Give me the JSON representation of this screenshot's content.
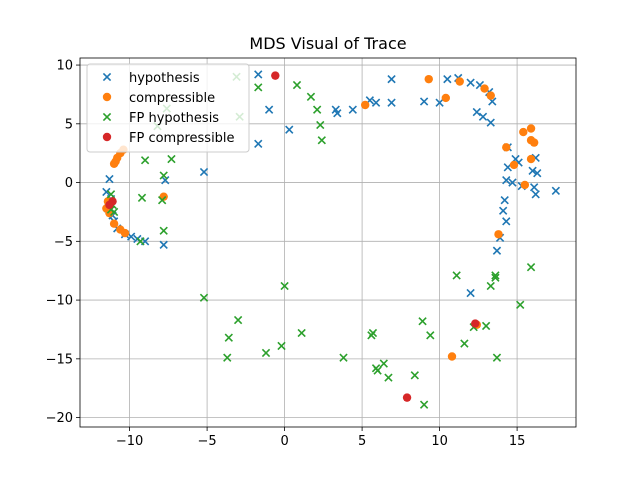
{
  "chart_data": {
    "type": "scatter",
    "title": "MDS Visual of Trace",
    "xlabel": "",
    "ylabel": "",
    "xlim": [
      -13.2,
      18.8
    ],
    "ylim": [
      -20.8,
      10.6
    ],
    "xticks": [
      -10,
      -5,
      0,
      5,
      10,
      15
    ],
    "yticks": [
      -20,
      -15,
      -10,
      -5,
      0,
      5,
      10
    ],
    "grid": true,
    "legend_position": "top-left",
    "series": [
      {
        "name": "hypothesis",
        "marker": "x",
        "color": "#1f77b4",
        "points": [
          [
            -11.5,
            -0.8
          ],
          [
            -11.3,
            0.3
          ],
          [
            -11.2,
            -1.4
          ],
          [
            -11.4,
            -2.2
          ],
          [
            -11.1,
            -2.8
          ],
          [
            -11.0,
            -3.3
          ],
          [
            -10.8,
            -3.9
          ],
          [
            -10.3,
            -4.4
          ],
          [
            -9.9,
            -4.6
          ],
          [
            -9.5,
            -4.8
          ],
          [
            -9.0,
            -5.0
          ],
          [
            -7.8,
            -5.3
          ],
          [
            -7.7,
            0.2
          ],
          [
            -5.2,
            0.9
          ],
          [
            -1.7,
            3.3
          ],
          [
            -1.0,
            6.2
          ],
          [
            -1.7,
            9.2
          ],
          [
            0.3,
            4.5
          ],
          [
            3.3,
            6.2
          ],
          [
            3.4,
            5.9
          ],
          [
            4.4,
            6.2
          ],
          [
            5.5,
            7.0
          ],
          [
            5.9,
            6.8
          ],
          [
            6.9,
            6.8
          ],
          [
            6.9,
            8.8
          ],
          [
            9.0,
            6.9
          ],
          [
            10.0,
            6.8
          ],
          [
            10.5,
            8.8
          ],
          [
            11.2,
            8.9
          ],
          [
            12.0,
            8.5
          ],
          [
            12.6,
            8.3
          ],
          [
            12.4,
            6.0
          ],
          [
            12.8,
            5.6
          ],
          [
            13.3,
            5.1
          ],
          [
            13.2,
            7.7
          ],
          [
            13.4,
            6.9
          ],
          [
            14.4,
            3.0
          ],
          [
            14.9,
            2.0
          ],
          [
            15.1,
            1.7
          ],
          [
            14.4,
            1.3
          ],
          [
            14.3,
            0.2
          ],
          [
            14.7,
            0.0
          ],
          [
            15.3,
            -0.3
          ],
          [
            16.2,
            2.1
          ],
          [
            16.3,
            0.8
          ],
          [
            16.0,
            1.0
          ],
          [
            16.1,
            -0.4
          ],
          [
            16.2,
            -1.0
          ],
          [
            17.5,
            -0.7
          ],
          [
            14.2,
            -1.5
          ],
          [
            14.1,
            -2.4
          ],
          [
            14.3,
            -3.3
          ],
          [
            13.9,
            -4.7
          ],
          [
            13.7,
            -5.8
          ],
          [
            12.0,
            -9.4
          ]
        ]
      },
      {
        "name": "compressible",
        "marker": "o",
        "color": "#ff7f0e",
        "points": [
          [
            -11.4,
            -1.6
          ],
          [
            -11.5,
            -2.2
          ],
          [
            -11.3,
            -2.6
          ],
          [
            -11.0,
            -3.5
          ],
          [
            -10.6,
            -4.0
          ],
          [
            -10.3,
            -4.3
          ],
          [
            -11.0,
            1.6
          ],
          [
            -10.9,
            1.8
          ],
          [
            -10.8,
            2.1
          ],
          [
            -10.6,
            2.5
          ],
          [
            -10.4,
            2.8
          ],
          [
            -7.8,
            -1.2
          ],
          [
            5.2,
            6.6
          ],
          [
            9.3,
            8.8
          ],
          [
            10.4,
            7.2
          ],
          [
            11.3,
            8.6
          ],
          [
            12.9,
            8.0
          ],
          [
            13.3,
            7.4
          ],
          [
            15.4,
            4.3
          ],
          [
            15.9,
            4.6
          ],
          [
            15.9,
            3.6
          ],
          [
            16.1,
            3.4
          ],
          [
            14.3,
            3.0
          ],
          [
            15.9,
            2.0
          ],
          [
            14.8,
            1.5
          ],
          [
            15.5,
            -0.2
          ],
          [
            13.8,
            -4.4
          ],
          [
            10.8,
            -14.8
          ],
          [
            12.4,
            -12.1
          ]
        ]
      },
      {
        "name": "FP hypothesis",
        "marker": "x",
        "color": "#2ca02c",
        "points": [
          [
            -11.2,
            -1.0
          ],
          [
            -11.1,
            -1.9
          ],
          [
            -11.2,
            -2.3
          ],
          [
            -11.0,
            -2.5
          ],
          [
            -9.3,
            -5.0
          ],
          [
            -9.2,
            -1.3
          ],
          [
            -9.0,
            1.9
          ],
          [
            -8.2,
            4.8
          ],
          [
            -7.8,
            0.6
          ],
          [
            -7.9,
            -1.5
          ],
          [
            -7.8,
            -4.1
          ],
          [
            -7.6,
            6.3
          ],
          [
            -7.3,
            2.0
          ],
          [
            -3.1,
            9.0
          ],
          [
            -2.9,
            5.6
          ],
          [
            -1.7,
            8.1
          ],
          [
            0.8,
            8.3
          ],
          [
            1.7,
            7.3
          ],
          [
            2.1,
            6.2
          ],
          [
            2.3,
            4.9
          ],
          [
            2.4,
            3.6
          ],
          [
            -5.2,
            -9.8
          ],
          [
            -3.0,
            -11.7
          ],
          [
            -3.6,
            -13.2
          ],
          [
            -3.7,
            -14.9
          ],
          [
            -1.2,
            -14.5
          ],
          [
            -0.2,
            -13.9
          ],
          [
            0.0,
            -8.8
          ],
          [
            1.1,
            -12.8
          ],
          [
            3.8,
            -14.9
          ],
          [
            5.6,
            -13.0
          ],
          [
            5.7,
            -12.8
          ],
          [
            5.9,
            -15.8
          ],
          [
            6.0,
            -16.0
          ],
          [
            6.4,
            -15.4
          ],
          [
            6.7,
            -16.6
          ],
          [
            8.4,
            -16.4
          ],
          [
            8.9,
            -11.8
          ],
          [
            9.0,
            -18.9
          ],
          [
            9.4,
            -13.0
          ],
          [
            11.1,
            -7.9
          ],
          [
            11.6,
            -13.7
          ],
          [
            12.2,
            -12.3
          ],
          [
            13.0,
            -12.2
          ],
          [
            13.3,
            -8.8
          ],
          [
            13.6,
            -7.9
          ],
          [
            13.6,
            -8.1
          ],
          [
            13.7,
            -14.9
          ],
          [
            15.2,
            -10.4
          ],
          [
            15.9,
            -7.2
          ]
        ]
      },
      {
        "name": "FP compressible",
        "marker": "o",
        "color": "#d62728",
        "points": [
          [
            -0.6,
            9.1
          ],
          [
            -11.1,
            -1.6
          ],
          [
            -11.3,
            -1.9
          ],
          [
            12.3,
            -12.0
          ],
          [
            7.9,
            -18.3
          ]
        ]
      }
    ]
  }
}
